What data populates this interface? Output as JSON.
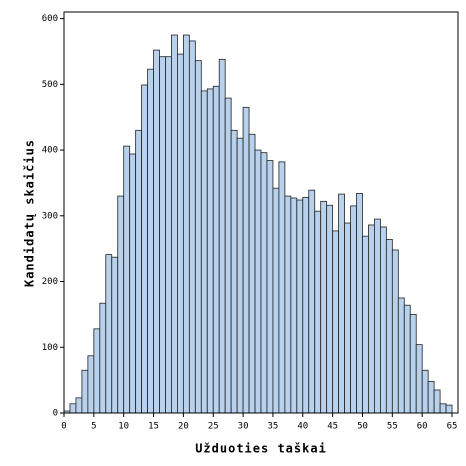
{
  "chart_data": {
    "type": "histogram",
    "xlabel": "Užduoties taškai",
    "ylabel": "Kandidatų skaičius",
    "bins": [
      0,
      1,
      2,
      3,
      4,
      5,
      6,
      7,
      8,
      9,
      10,
      11,
      12,
      13,
      14,
      15,
      16,
      17,
      18,
      19,
      20,
      21,
      22,
      23,
      24,
      25,
      26,
      27,
      28,
      29,
      30,
      31,
      32,
      33,
      34,
      35,
      36,
      37,
      38,
      39,
      40,
      41,
      42,
      43,
      44,
      45,
      46,
      47,
      48,
      49,
      50,
      51,
      52,
      53,
      54,
      55,
      56,
      57,
      58,
      59,
      60,
      61,
      62,
      63,
      64,
      65
    ],
    "values": [
      3,
      14,
      23,
      65,
      87,
      128,
      167,
      241,
      237,
      330,
      406,
      394,
      430,
      499,
      523,
      552,
      542,
      542,
      575,
      546,
      575,
      566,
      536,
      490,
      493,
      497,
      538,
      479,
      430,
      418,
      465,
      424,
      400,
      396,
      384,
      342,
      382,
      330,
      327,
      324,
      328,
      339,
      307,
      322,
      316,
      277,
      333,
      289,
      315,
      334,
      269,
      286,
      295,
      283,
      264,
      248,
      175,
      164,
      150,
      104,
      65,
      48,
      35,
      14,
      12
    ],
    "color": "#b8d1ec",
    "xlim": [
      0,
      66
    ],
    "ylim": [
      0,
      610
    ],
    "xticks": [
      0,
      5,
      10,
      15,
      20,
      25,
      30,
      35,
      40,
      45,
      50,
      55,
      60,
      65
    ],
    "yticks": [
      0,
      100,
      200,
      300,
      400,
      500,
      600
    ]
  }
}
